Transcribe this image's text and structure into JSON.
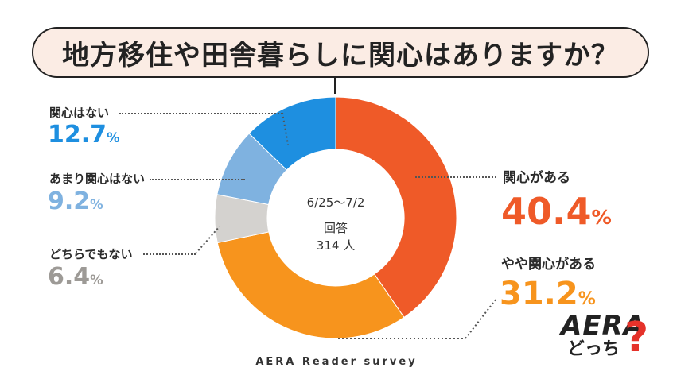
{
  "title": "地方移住や田舎暮らしに関心はありますか？",
  "center": {
    "range": "6/25～7/2",
    "label": "回答",
    "count": "314 人"
  },
  "footer": "AERA Reader survey",
  "logo": {
    "brand": "AERA",
    "sub": "どっち",
    "mark": "?"
  },
  "chart_data": {
    "type": "pie",
    "donut": true,
    "categories": [
      "関心がある",
      "やや関心がある",
      "どちらでもない",
      "あまり関心はない",
      "関心はない"
    ],
    "values": [
      40.4,
      31.2,
      6.4,
      9.2,
      12.7
    ],
    "value_labels": [
      "40.4",
      "31.2",
      "6.4",
      "9.2",
      "12.7"
    ],
    "unit": "%",
    "colors": [
      "#ef5a28",
      "#f7941d",
      "#d4d2cf",
      "#7fb2e0",
      "#1e8fe0"
    ],
    "label_colors": [
      "#ef5a28",
      "#f7941d",
      "#9d9a96",
      "#7fb2e0",
      "#1e8fe0"
    ],
    "start": "top",
    "direction": "clockwise"
  }
}
